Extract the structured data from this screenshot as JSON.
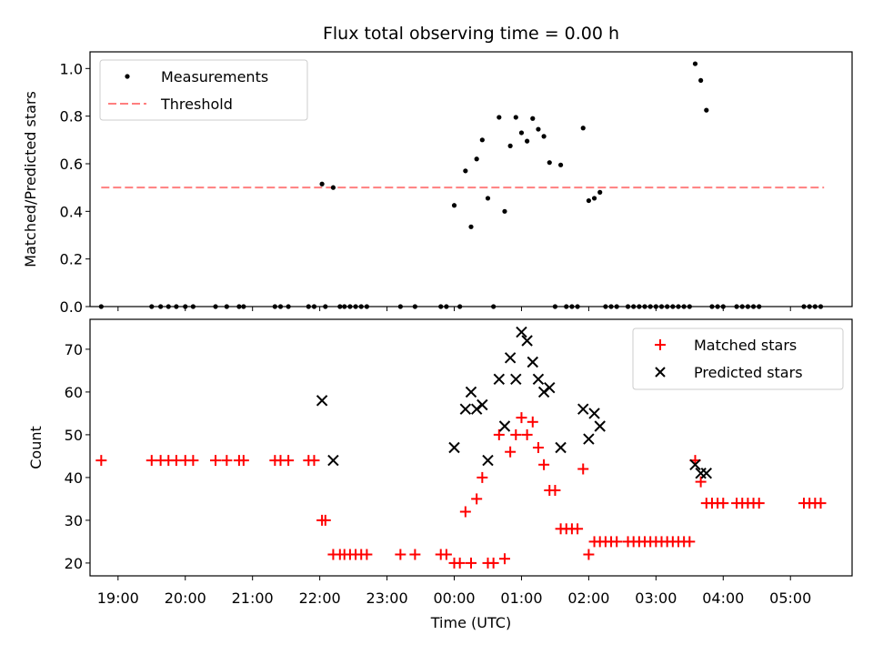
{
  "chart_data": [
    {
      "type": "scatter",
      "title": "Flux total observing time = 0.00 h",
      "ylabel": "Matched/Predicted stars",
      "xlabel": "",
      "xlim": [
        "18:35",
        "05:55"
      ],
      "ylim": [
        0,
        1.07
      ],
      "yticks": [
        "0.0",
        "0.2",
        "0.4",
        "0.6",
        "0.8",
        "1.0"
      ],
      "legend_position": "top-left",
      "threshold": {
        "name": "Threshold",
        "value": 0.5,
        "x_range": [
          "18:45",
          "05:30"
        ],
        "color": "#ff7f7f"
      },
      "series": [
        {
          "name": "Measurements",
          "color": "#000000",
          "points": [
            [
              "18:45",
              0.0
            ],
            [
              "19:30",
              0.0
            ],
            [
              "19:38",
              0.0
            ],
            [
              "19:45",
              0.0
            ],
            [
              "19:52",
              0.0
            ],
            [
              "20:00",
              0.0
            ],
            [
              "20:07",
              0.0
            ],
            [
              "20:27",
              0.0
            ],
            [
              "20:37",
              0.0
            ],
            [
              "20:48",
              0.0
            ],
            [
              "20:52",
              0.0
            ],
            [
              "21:20",
              0.0
            ],
            [
              "21:25",
              0.0
            ],
            [
              "21:32",
              0.0
            ],
            [
              "21:50",
              0.0
            ],
            [
              "21:55",
              0.0
            ],
            [
              "22:02",
              0.515
            ],
            [
              "22:05",
              0.0
            ],
            [
              "22:12",
              0.5
            ],
            [
              "22:18",
              0.0
            ],
            [
              "22:22",
              0.0
            ],
            [
              "22:27",
              0.0
            ],
            [
              "22:32",
              0.0
            ],
            [
              "22:37",
              0.0
            ],
            [
              "22:42",
              0.0
            ],
            [
              "23:12",
              0.0
            ],
            [
              "23:25",
              0.0
            ],
            [
              "23:48",
              0.0
            ],
            [
              "23:53",
              0.0
            ],
            [
              "00:00",
              0.425
            ],
            [
              "00:05",
              0.0
            ],
            [
              "00:10",
              0.57
            ],
            [
              "00:15",
              0.335
            ],
            [
              "00:20",
              0.62
            ],
            [
              "00:25",
              0.7
            ],
            [
              "00:30",
              0.455
            ],
            [
              "00:35",
              0.0
            ],
            [
              "00:40",
              0.795
            ],
            [
              "00:45",
              0.4
            ],
            [
              "00:50",
              0.675
            ],
            [
              "00:55",
              0.795
            ],
            [
              "01:00",
              0.73
            ],
            [
              "01:05",
              0.695
            ],
            [
              "01:10",
              0.79
            ],
            [
              "01:15",
              0.745
            ],
            [
              "01:20",
              0.715
            ],
            [
              "01:25",
              0.605
            ],
            [
              "01:30",
              0.0
            ],
            [
              "01:35",
              0.595
            ],
            [
              "01:40",
              0.0
            ],
            [
              "01:45",
              0.0
            ],
            [
              "01:50",
              0.0
            ],
            [
              "01:55",
              0.75
            ],
            [
              "02:00",
              0.445
            ],
            [
              "02:05",
              0.455
            ],
            [
              "02:10",
              0.48
            ],
            [
              "02:15",
              0.0
            ],
            [
              "02:20",
              0.0
            ],
            [
              "02:25",
              0.0
            ],
            [
              "02:35",
              0.0
            ],
            [
              "02:40",
              0.0
            ],
            [
              "02:45",
              0.0
            ],
            [
              "02:50",
              0.0
            ],
            [
              "02:55",
              0.0
            ],
            [
              "03:00",
              0.0
            ],
            [
              "03:05",
              0.0
            ],
            [
              "03:10",
              0.0
            ],
            [
              "03:15",
              0.0
            ],
            [
              "03:20",
              0.0
            ],
            [
              "03:25",
              0.0
            ],
            [
              "03:30",
              0.0
            ],
            [
              "03:35",
              1.02
            ],
            [
              "03:40",
              0.95
            ],
            [
              "03:45",
              0.825
            ],
            [
              "03:50",
              0.0
            ],
            [
              "03:55",
              0.0
            ],
            [
              "04:00",
              0.0
            ],
            [
              "04:12",
              0.0
            ],
            [
              "04:17",
              0.0
            ],
            [
              "04:22",
              0.0
            ],
            [
              "04:27",
              0.0
            ],
            [
              "04:32",
              0.0
            ],
            [
              "05:12",
              0.0
            ],
            [
              "05:17",
              0.0
            ],
            [
              "05:22",
              0.0
            ],
            [
              "05:27",
              0.0
            ]
          ]
        }
      ]
    },
    {
      "type": "scatter",
      "title": "",
      "xlabel": "Time (UTC)",
      "ylabel": "Count",
      "xlim": [
        "18:35",
        "05:55"
      ],
      "ylim": [
        17,
        77
      ],
      "yticks": [
        "20",
        "30",
        "40",
        "50",
        "60",
        "70"
      ],
      "xticks": [
        "19:00",
        "20:00",
        "21:00",
        "22:00",
        "23:00",
        "00:00",
        "01:00",
        "02:00",
        "03:00",
        "04:00",
        "05:00"
      ],
      "legend_position": "top-right",
      "series": [
        {
          "name": "Matched stars",
          "color": "#ff0000",
          "marker": "plus",
          "points": [
            [
              "18:45",
              44
            ],
            [
              "19:30",
              44
            ],
            [
              "19:38",
              44
            ],
            [
              "19:45",
              44
            ],
            [
              "19:52",
              44
            ],
            [
              "20:00",
              44
            ],
            [
              "20:07",
              44
            ],
            [
              "20:27",
              44
            ],
            [
              "20:37",
              44
            ],
            [
              "20:48",
              44
            ],
            [
              "20:52",
              44
            ],
            [
              "21:20",
              44
            ],
            [
              "21:25",
              44
            ],
            [
              "21:32",
              44
            ],
            [
              "21:50",
              44
            ],
            [
              "21:55",
              44
            ],
            [
              "22:02",
              30
            ],
            [
              "22:05",
              30
            ],
            [
              "22:12",
              22
            ],
            [
              "22:18",
              22
            ],
            [
              "22:22",
              22
            ],
            [
              "22:27",
              22
            ],
            [
              "22:32",
              22
            ],
            [
              "22:37",
              22
            ],
            [
              "22:42",
              22
            ],
            [
              "23:12",
              22
            ],
            [
              "23:25",
              22
            ],
            [
              "23:48",
              22
            ],
            [
              "23:53",
              22
            ],
            [
              "00:00",
              20
            ],
            [
              "00:05",
              20
            ],
            [
              "00:10",
              32
            ],
            [
              "00:15",
              20
            ],
            [
              "00:20",
              35
            ],
            [
              "00:25",
              40
            ],
            [
              "00:30",
              20
            ],
            [
              "00:35",
              20
            ],
            [
              "00:40",
              50
            ],
            [
              "00:45",
              21
            ],
            [
              "00:50",
              46
            ],
            [
              "00:55",
              50
            ],
            [
              "01:00",
              54
            ],
            [
              "01:05",
              50
            ],
            [
              "01:10",
              53
            ],
            [
              "01:15",
              47
            ],
            [
              "01:20",
              43
            ],
            [
              "01:25",
              37
            ],
            [
              "01:30",
              37
            ],
            [
              "01:35",
              28
            ],
            [
              "01:40",
              28
            ],
            [
              "01:45",
              28
            ],
            [
              "01:50",
              28
            ],
            [
              "01:55",
              42
            ],
            [
              "02:00",
              22
            ],
            [
              "02:05",
              25
            ],
            [
              "02:10",
              25
            ],
            [
              "02:15",
              25
            ],
            [
              "02:20",
              25
            ],
            [
              "02:25",
              25
            ],
            [
              "02:35",
              25
            ],
            [
              "02:40",
              25
            ],
            [
              "02:45",
              25
            ],
            [
              "02:50",
              25
            ],
            [
              "02:55",
              25
            ],
            [
              "03:00",
              25
            ],
            [
              "03:05",
              25
            ],
            [
              "03:10",
              25
            ],
            [
              "03:15",
              25
            ],
            [
              "03:20",
              25
            ],
            [
              "03:25",
              25
            ],
            [
              "03:30",
              25
            ],
            [
              "03:35",
              44
            ],
            [
              "03:40",
              39
            ],
            [
              "03:45",
              34
            ],
            [
              "03:50",
              34
            ],
            [
              "03:55",
              34
            ],
            [
              "04:00",
              34
            ],
            [
              "04:12",
              34
            ],
            [
              "04:17",
              34
            ],
            [
              "04:22",
              34
            ],
            [
              "04:27",
              34
            ],
            [
              "04:32",
              34
            ],
            [
              "05:12",
              34
            ],
            [
              "05:17",
              34
            ],
            [
              "05:22",
              34
            ],
            [
              "05:27",
              34
            ]
          ]
        },
        {
          "name": "Predicted stars",
          "color": "#000000",
          "marker": "x",
          "points": [
            [
              "22:02",
              58
            ],
            [
              "22:12",
              44
            ],
            [
              "00:00",
              47
            ],
            [
              "00:10",
              56
            ],
            [
              "00:15",
              60
            ],
            [
              "00:20",
              56
            ],
            [
              "00:25",
              57
            ],
            [
              "00:30",
              44
            ],
            [
              "00:40",
              63
            ],
            [
              "00:45",
              52
            ],
            [
              "00:50",
              68
            ],
            [
              "00:55",
              63
            ],
            [
              "01:00",
              74
            ],
            [
              "01:05",
              72
            ],
            [
              "01:10",
              67
            ],
            [
              "01:15",
              63
            ],
            [
              "01:20",
              60
            ],
            [
              "01:25",
              61
            ],
            [
              "01:35",
              47
            ],
            [
              "01:55",
              56
            ],
            [
              "02:00",
              49
            ],
            [
              "02:05",
              55
            ],
            [
              "02:10",
              52
            ],
            [
              "03:35",
              43
            ],
            [
              "03:40",
              41
            ],
            [
              "03:45",
              41
            ]
          ]
        }
      ]
    }
  ]
}
